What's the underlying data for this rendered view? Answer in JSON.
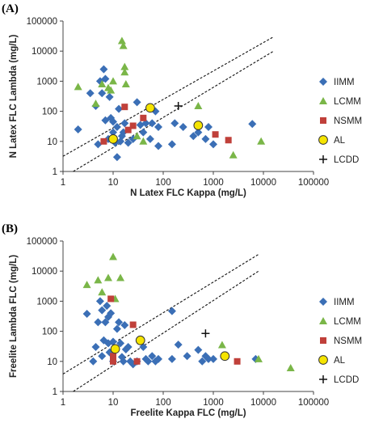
{
  "chart_data": [
    {
      "type": "scatter",
      "panel_label": "(A)",
      "xlabel": "N Latex FLC Kappa (mg/L)",
      "ylabel": "N Latex FLC Lambda (mg/L)",
      "xscale": "log",
      "yscale": "log",
      "xlim": [
        1,
        100000
      ],
      "ylim": [
        1,
        100000
      ],
      "xticks": [
        "1",
        "10",
        "100",
        "1000",
        "10000",
        "100000"
      ],
      "yticks": [
        "1",
        "10",
        "100",
        "1000",
        "10000",
        "100000"
      ],
      "legend_position": "right",
      "reference_lines": [
        {
          "style": "dashed",
          "points": [
            [
              1,
              3.2
            ],
            [
              16000,
              30000
            ]
          ]
        },
        {
          "style": "dashed",
          "points": [
            [
              1.6,
              1
            ],
            [
              16000,
              10000
            ]
          ]
        }
      ],
      "series": [
        {
          "name": "IIMM",
          "marker": "diamond",
          "color": "#3b6fb6",
          "points": [
            [
              2,
              25
            ],
            [
              3.5,
              400
            ],
            [
              4.5,
              150
            ],
            [
              5,
              8
            ],
            [
              5.5,
              1000
            ],
            [
              6,
              400
            ],
            [
              6.5,
              2500
            ],
            [
              7,
              50
            ],
            [
              7,
              1200
            ],
            [
              8,
              12
            ],
            [
              8.5,
              300
            ],
            [
              9,
              60
            ],
            [
              10,
              45
            ],
            [
              10,
              20
            ],
            [
              11,
              9
            ],
            [
              12,
              3
            ],
            [
              12,
              30
            ],
            [
              13,
              120
            ],
            [
              14,
              10
            ],
            [
              15,
              15
            ],
            [
              16,
              20
            ],
            [
              17,
              40
            ],
            [
              20,
              9
            ],
            [
              25,
              12
            ],
            [
              30,
              200
            ],
            [
              35,
              35
            ],
            [
              40,
              20
            ],
            [
              45,
              40
            ],
            [
              55,
              12
            ],
            [
              60,
              40
            ],
            [
              70,
              100
            ],
            [
              80,
              7
            ],
            [
              80,
              30
            ],
            [
              150,
              8
            ],
            [
              170,
              40
            ],
            [
              250,
              30
            ],
            [
              400,
              15
            ],
            [
              500,
              20
            ],
            [
              700,
              12
            ],
            [
              800,
              30
            ],
            [
              1000,
              8
            ],
            [
              6000,
              38
            ]
          ]
        },
        {
          "name": "LCMM",
          "marker": "triangle",
          "color": "#7ab648",
          "points": [
            [
              2,
              650
            ],
            [
              4.5,
              180
            ],
            [
              6,
              800
            ],
            [
              8,
              600
            ],
            [
              9,
              500
            ],
            [
              10,
              1000
            ],
            [
              15,
              22000
            ],
            [
              16,
              15000
            ],
            [
              17,
              3000
            ],
            [
              17,
              2000
            ],
            [
              18,
              800
            ],
            [
              30,
              15
            ],
            [
              40,
              10
            ],
            [
              500,
              150
            ],
            [
              2500,
              3.5
            ],
            [
              9000,
              10
            ]
          ]
        },
        {
          "name": "NSMM",
          "marker": "square",
          "color": "#c0403a",
          "points": [
            [
              6.5,
              10
            ],
            [
              17,
              140
            ],
            [
              20,
              24
            ],
            [
              25,
              33
            ],
            [
              40,
              60
            ],
            [
              1100,
              17
            ],
            [
              2000,
              11
            ]
          ]
        },
        {
          "name": "AL",
          "marker": "circle",
          "color": "#f5e400",
          "points": [
            [
              10,
              12
            ],
            [
              55,
              130
            ],
            [
              500,
              34
            ]
          ]
        },
        {
          "name": "LCDD",
          "marker": "plus",
          "color": "#111111",
          "points": [
            [
              200,
              150
            ]
          ]
        }
      ]
    },
    {
      "type": "scatter",
      "panel_label": "(B)",
      "xlabel": "Freelite Kappa FLC (mg/L)",
      "ylabel": "Freelite Lambda FLC (mg/L)",
      "xscale": "log",
      "yscale": "log",
      "xlim": [
        1,
        100000
      ],
      "ylim": [
        1,
        100000
      ],
      "xticks": [
        "1",
        "10",
        "100",
        "1000",
        "10000",
        "100000"
      ],
      "yticks": [
        "1",
        "10",
        "100",
        "1000",
        "10000",
        "100000"
      ],
      "legend_position": "right",
      "reference_lines": [
        {
          "style": "dashed",
          "points": [
            [
              1,
              3.8
            ],
            [
              8000,
              36000
            ]
          ]
        },
        {
          "style": "dashed",
          "points": [
            [
              1.6,
              1
            ],
            [
              8000,
              10000
            ]
          ]
        }
      ],
      "series": [
        {
          "name": "IIMM",
          "marker": "diamond",
          "color": "#3b6fb6",
          "points": [
            [
              3,
              380
            ],
            [
              4,
              10
            ],
            [
              4.5,
              30
            ],
            [
              5,
              200
            ],
            [
              5.5,
              1000
            ],
            [
              6,
              15
            ],
            [
              6,
              500
            ],
            [
              6.5,
              50
            ],
            [
              7,
              200
            ],
            [
              7.5,
              700
            ],
            [
              8,
              300
            ],
            [
              8,
              40
            ],
            [
              8.5,
              20
            ],
            [
              9,
              400
            ],
            [
              10,
              45
            ],
            [
              10,
              10
            ],
            [
              11,
              25
            ],
            [
              12,
              120
            ],
            [
              13,
              200
            ],
            [
              14,
              40
            ],
            [
              15,
              14
            ],
            [
              16,
              10
            ],
            [
              17,
              160
            ],
            [
              18,
              25
            ],
            [
              20,
              30
            ],
            [
              22,
              10
            ],
            [
              25,
              8
            ],
            [
              30,
              10
            ],
            [
              40,
              30
            ],
            [
              45,
              12
            ],
            [
              50,
              10
            ],
            [
              60,
              15
            ],
            [
              70,
              10
            ],
            [
              80,
              12
            ],
            [
              150,
              470
            ],
            [
              150,
              12
            ],
            [
              200,
              36
            ],
            [
              300,
              15
            ],
            [
              500,
              24
            ],
            [
              600,
              10
            ],
            [
              700,
              15
            ],
            [
              800,
              12
            ],
            [
              1000,
              12
            ],
            [
              7000,
              12
            ]
          ]
        },
        {
          "name": "LCMM",
          "marker": "triangle",
          "color": "#7ab648",
          "points": [
            [
              3,
              3500
            ],
            [
              5,
              5000
            ],
            [
              6,
              2000
            ],
            [
              8,
              6000
            ],
            [
              10,
              30000
            ],
            [
              11,
              1200
            ],
            [
              14,
              6000
            ],
            [
              1500,
              35
            ],
            [
              8000,
              12
            ],
            [
              35000,
              6
            ]
          ]
        },
        {
          "name": "NSMM",
          "marker": "square",
          "color": "#c0403a",
          "points": [
            [
              9,
              1200
            ],
            [
              10,
              15
            ],
            [
              10,
              10
            ],
            [
              25,
              165
            ],
            [
              30,
              10
            ],
            [
              3000,
              10
            ]
          ]
        },
        {
          "name": "AL",
          "marker": "circle",
          "color": "#f5e400",
          "points": [
            [
              11,
              26
            ],
            [
              35,
              50
            ],
            [
              1700,
              15
            ]
          ]
        },
        {
          "name": "LCDD",
          "marker": "plus",
          "color": "#111111",
          "points": [
            [
              700,
              85
            ]
          ]
        }
      ]
    }
  ]
}
